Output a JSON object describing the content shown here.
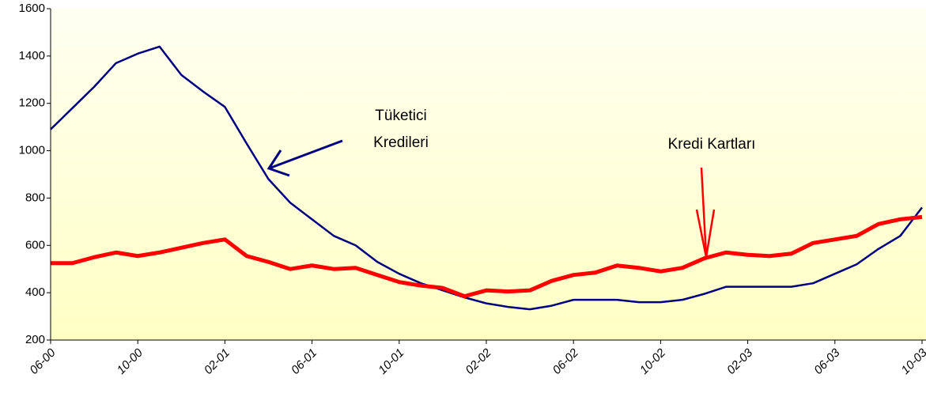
{
  "chart_data": {
    "type": "line",
    "categories": [
      "06-00",
      null,
      null,
      null,
      "10-00",
      null,
      null,
      null,
      "02-01",
      null,
      null,
      null,
      "06-01",
      null,
      null,
      null,
      "10-01",
      null,
      null,
      null,
      "02-02",
      null,
      null,
      null,
      "06-02",
      null,
      null,
      null,
      "10-02",
      null,
      null,
      null,
      "02-03",
      null,
      null,
      null,
      "06-03",
      null,
      null,
      null,
      "10-03"
    ],
    "series": [
      {
        "color": "#000080",
        "values": [
          1090,
          1180,
          1270,
          1370,
          1410,
          1440,
          1320,
          1250,
          1185,
          1030,
          880,
          780,
          710,
          640,
          600,
          530,
          480,
          440,
          410,
          380,
          355,
          340,
          330,
          345,
          370,
          370,
          370,
          360,
          360,
          370,
          395,
          425,
          425,
          425,
          425,
          440,
          480,
          520,
          585,
          640,
          760
        ]
      },
      {
        "color": "#ff0000",
        "values": [
          525,
          525,
          550,
          570,
          555,
          570,
          590,
          610,
          625,
          555,
          530,
          500,
          515,
          500,
          505,
          475,
          445,
          430,
          420,
          385,
          410,
          405,
          410,
          450,
          475,
          485,
          515,
          505,
          490,
          505,
          545,
          570,
          560,
          555,
          565,
          610,
          625,
          640,
          690,
          710,
          720
        ]
      }
    ],
    "ylim": [
      200,
      1600
    ],
    "yticks": [
      200,
      400,
      600,
      800,
      1000,
      1200,
      1400,
      1600
    ],
    "grid": false,
    "annotations": [
      {
        "lines": [
          "Tüketici",
          "Kredileri"
        ]
      },
      {
        "lines": [
          "Kredi Kartları"
        ]
      }
    ]
  }
}
